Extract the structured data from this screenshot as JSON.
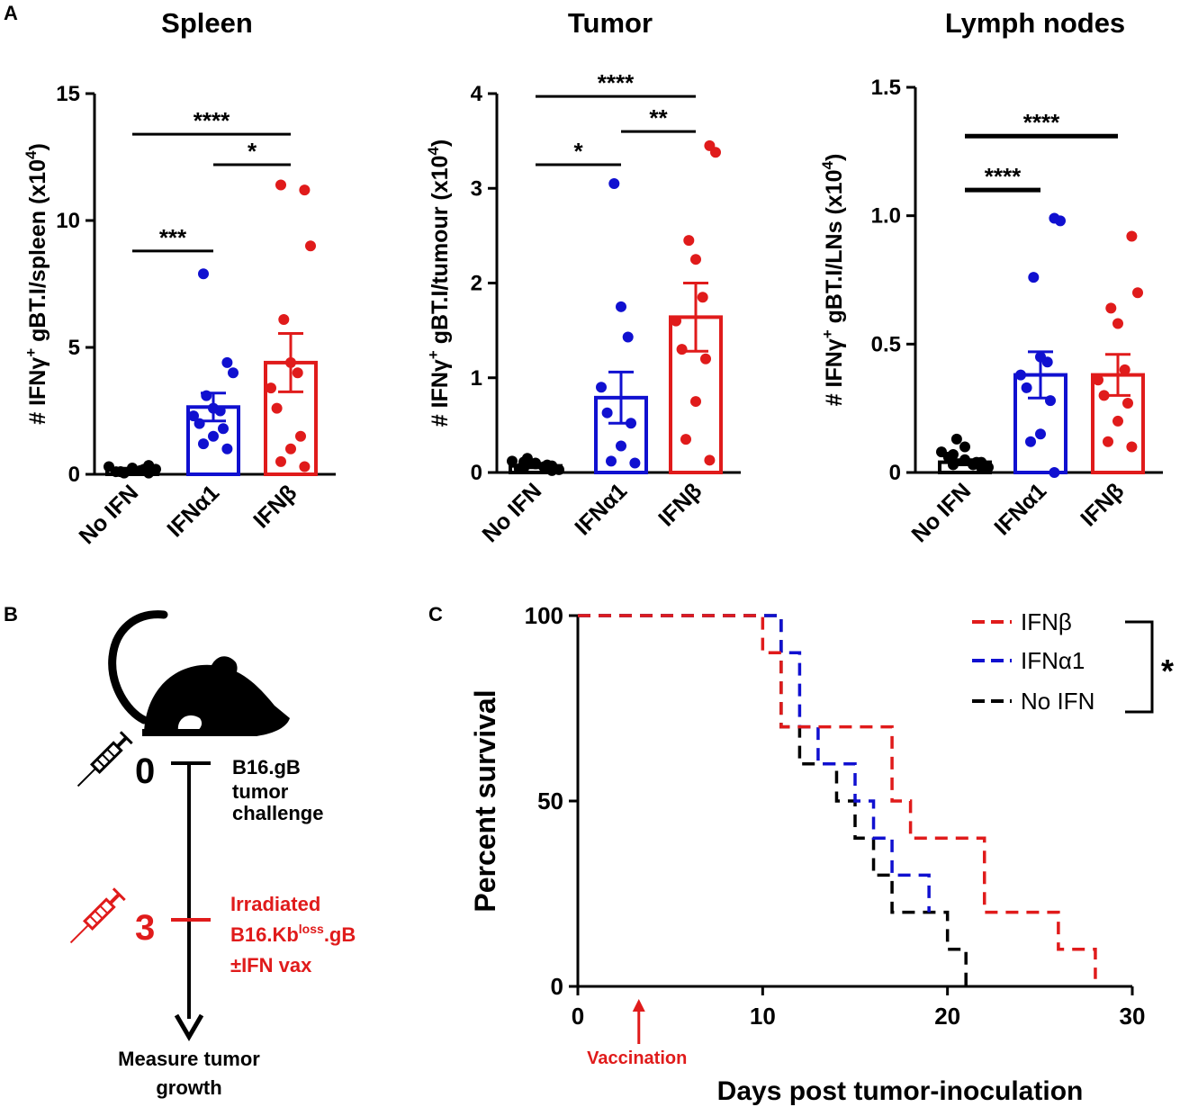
{
  "panel_letters": {
    "a": "A",
    "b": "B",
    "c": "C"
  },
  "colors": {
    "no_ifn": "#000000",
    "ifna1": "#1010d0",
    "ifnb": "#e01b1b",
    "axis": "#000000"
  },
  "chart_data": [
    {
      "id": "spleen",
      "type": "bar",
      "title": "Spleen",
      "ylabel_parts": [
        "# IFNγ",
        "+",
        " gBT.I/spleen (x10",
        "4",
        ")"
      ],
      "categories": [
        "No IFN",
        "IFNα1",
        "IFNβ"
      ],
      "ylim": [
        0,
        15
      ],
      "yticks": [
        0,
        5,
        10,
        15
      ],
      "ytick_labels": [
        "0",
        "5",
        "10",
        "15"
      ],
      "means": [
        0.2,
        2.65,
        4.4
      ],
      "sem": [
        0.04,
        0.55,
        1.15
      ],
      "points": [
        [
          0.05,
          0.1,
          0.15,
          0.2,
          0.1,
          0.3,
          0.15,
          0.25,
          0.05,
          0.2,
          0.35,
          0.1
        ],
        [
          1.0,
          1.2,
          1.5,
          1.8,
          2.0,
          2.3,
          2.5,
          2.6,
          3.1,
          4.0,
          4.4,
          7.9
        ],
        [
          0.3,
          0.5,
          1.0,
          1.5,
          2.6,
          3.4,
          4.0,
          4.4,
          6.1,
          9.0,
          11.2,
          11.4
        ]
      ],
      "brackets": [
        {
          "from": 0,
          "to": 1,
          "y": 8.8,
          "label": "***"
        },
        {
          "from": 1,
          "to": 2,
          "y": 12.2,
          "label": "*"
        },
        {
          "from": 0,
          "to": 2,
          "y": 13.4,
          "label": "****"
        }
      ]
    },
    {
      "id": "tumor",
      "type": "bar",
      "title": "Tumor",
      "ylabel_parts": [
        "# IFNγ",
        "+",
        " gBT.I/tumour (x10",
        "4",
        ")"
      ],
      "categories": [
        "No IFN",
        "IFNα1",
        "IFNβ"
      ],
      "ylim": [
        0,
        4
      ],
      "yticks": [
        0,
        1,
        2,
        3,
        4
      ],
      "ytick_labels": [
        "0",
        "1",
        "2",
        "3",
        "4"
      ],
      "means": [
        0.07,
        0.79,
        1.64
      ],
      "sem": [
        0.02,
        0.27,
        0.36
      ],
      "points": [
        [
          0.02,
          0.05,
          0.1,
          0.08,
          0.04,
          0.12,
          0.06,
          0.09,
          0.15,
          0.03,
          0.07,
          0.11
        ],
        [
          0.1,
          0.12,
          0.28,
          0.52,
          0.63,
          0.9,
          1.43,
          1.75,
          3.05
        ],
        [
          0.13,
          0.35,
          0.75,
          1.2,
          1.3,
          1.6,
          1.85,
          2.25,
          2.45,
          3.38,
          3.45
        ]
      ],
      "brackets": [
        {
          "from": 0,
          "to": 1,
          "y": 3.25,
          "label": "*"
        },
        {
          "from": 1,
          "to": 2,
          "y": 3.6,
          "label": "**"
        },
        {
          "from": 0,
          "to": 2,
          "y": 3.97,
          "label": "****"
        }
      ]
    },
    {
      "id": "lymph",
      "type": "bar",
      "title": "Lymph nodes",
      "ylabel_parts": [
        "# IFNγ",
        "+",
        " gBT.I/LNs (x10",
        "4",
        ")"
      ],
      "categories": [
        "No IFN",
        "IFNα1",
        "IFNβ"
      ],
      "ylim": [
        0,
        1.5
      ],
      "yticks": [
        0,
        0.5,
        1.0,
        1.5
      ],
      "ytick_labels": [
        "0",
        "0.5",
        "1.0",
        "1.5"
      ],
      "means": [
        0.04,
        0.38,
        0.38
      ],
      "sem": [
        0.01,
        0.09,
        0.08
      ],
      "points": [
        [
          0.02,
          0.03,
          0.05,
          0.04,
          0.06,
          0.08,
          0.03,
          0.1,
          0.13,
          0.02,
          0.04,
          0.07
        ],
        [
          0.0,
          0.12,
          0.15,
          0.28,
          0.33,
          0.38,
          0.43,
          0.45,
          0.76,
          0.98,
          0.99
        ],
        [
          0.1,
          0.12,
          0.2,
          0.27,
          0.3,
          0.36,
          0.4,
          0.58,
          0.64,
          0.7,
          0.92
        ]
      ],
      "brackets": [
        {
          "from": 0,
          "to": 1,
          "y": 1.1,
          "label": "****"
        },
        {
          "from": 0,
          "to": 2,
          "y": 1.31,
          "label": "****"
        }
      ]
    },
    {
      "id": "survival",
      "type": "line",
      "title": "",
      "xlabel": "Days post tumor-inoculation",
      "ylabel": "Percent survival",
      "xlim": [
        0,
        30
      ],
      "ylim": [
        0,
        100
      ],
      "xticks": [
        0,
        10,
        20,
        30
      ],
      "yticks": [
        0,
        50,
        100
      ],
      "annotation": "Vaccination",
      "annotation_x": 3.3,
      "significance": "*",
      "series": [
        {
          "name": "IFNβ",
          "color": "#e01b1b",
          "steps": [
            [
              0,
              100
            ],
            [
              10,
              90
            ],
            [
              11,
              70
            ],
            [
              17,
              50
            ],
            [
              18,
              40
            ],
            [
              22,
              20
            ],
            [
              26,
              10
            ],
            [
              28,
              2
            ]
          ]
        },
        {
          "name": "IFNα1",
          "color": "#1010d0",
          "steps": [
            [
              0,
              100
            ],
            [
              11,
              90
            ],
            [
              12,
              70
            ],
            [
              13,
              60
            ],
            [
              15,
              50
            ],
            [
              16,
              40
            ],
            [
              17,
              30
            ],
            [
              19,
              20
            ]
          ]
        },
        {
          "name": "No IFN",
          "color": "#000000",
          "steps": [
            [
              0,
              100
            ],
            [
              11,
              70
            ],
            [
              12,
              60
            ],
            [
              14,
              50
            ],
            [
              15,
              40
            ],
            [
              16,
              30
            ],
            [
              17,
              20
            ],
            [
              20,
              10
            ],
            [
              21,
              0
            ]
          ]
        }
      ]
    }
  ],
  "schematic": {
    "step0_num": "0",
    "step0_lines": [
      "B16.gB",
      "tumor",
      "challenge"
    ],
    "step3_num": "3",
    "step3_line1": "Irradiated",
    "step3_line2_main": "B16.Kb",
    "step3_line2_sup": "loss",
    "step3_line2_end": ".gB",
    "step3_line3": "±IFN vax",
    "bottom_lines": [
      "Measure tumor",
      "growth"
    ]
  }
}
